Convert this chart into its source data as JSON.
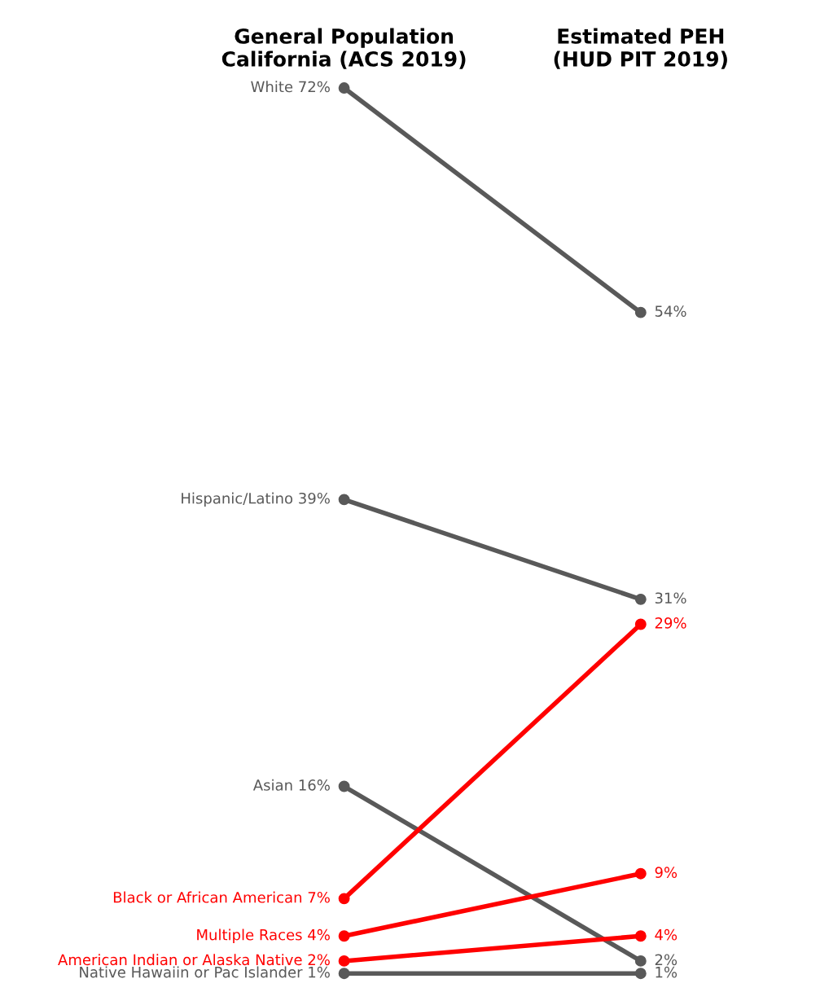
{
  "chart_data": {
    "type": "line",
    "categories": [
      "General Population\nCalifornia (ACS 2019)",
      "Estimated PEH\n(HUD PIT 2019)"
    ],
    "series": [
      {
        "name": "White",
        "color": "#595959",
        "values": [
          72,
          54
        ],
        "value_labels": [
          "72%",
          "54%"
        ]
      },
      {
        "name": "Hispanic/Latino",
        "color": "#595959",
        "values": [
          39,
          31
        ],
        "value_labels": [
          "39%",
          "31%"
        ]
      },
      {
        "name": "Asian",
        "color": "#595959",
        "values": [
          16,
          2
        ],
        "value_labels": [
          "16%",
          "2%"
        ]
      },
      {
        "name": "Black or African American",
        "color": "#ff0000",
        "values": [
          7,
          29
        ],
        "value_labels": [
          "7%",
          "29%"
        ]
      },
      {
        "name": "Multiple Races",
        "color": "#ff0000",
        "values": [
          4,
          9
        ],
        "value_labels": [
          "4%",
          "9%"
        ]
      },
      {
        "name": "American Indian or Alaska Native",
        "color": "#ff0000",
        "values": [
          2,
          4
        ],
        "value_labels": [
          "2%",
          "4%"
        ]
      },
      {
        "name": "Native Hawaiin or Pac Islander",
        "color": "#595959",
        "values": [
          1,
          1
        ],
        "value_labels": [
          "1%",
          "1%"
        ]
      }
    ],
    "marker": "circle",
    "line_style": "solid",
    "tick_labels": "x"
  }
}
